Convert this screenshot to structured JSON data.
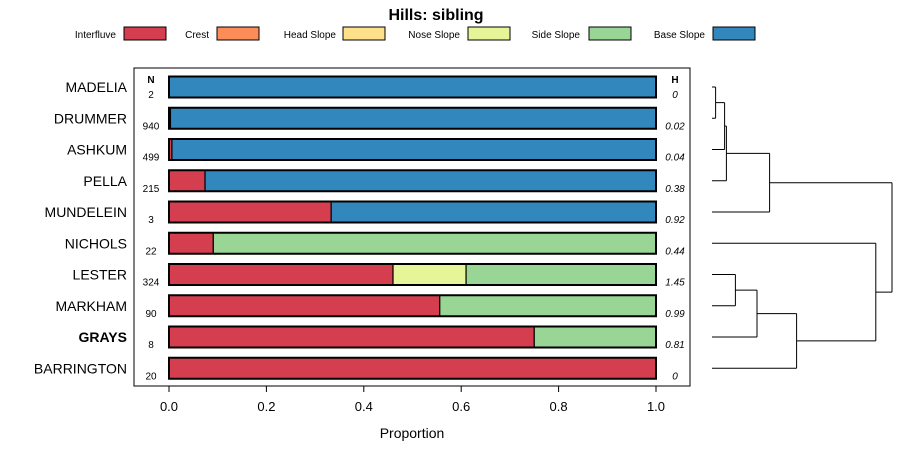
{
  "chart_data": {
    "type": "bar",
    "orientation": "horizontal",
    "stacked": true,
    "title": "Hills: sibling",
    "xlabel": "Proportion",
    "xlim": [
      0,
      1
    ],
    "x_ticks": [
      "0.0",
      "0.2",
      "0.4",
      "0.6",
      "0.8",
      "1.0"
    ],
    "n_header": "N",
    "h_header": "H",
    "legend_position": "top",
    "series": [
      {
        "name": "Interfluve",
        "color": "#d53e4f"
      },
      {
        "name": "Crest",
        "color": "#fc8d59"
      },
      {
        "name": "Head Slope",
        "color": "#fee08b"
      },
      {
        "name": "Nose Slope",
        "color": "#e6f598"
      },
      {
        "name": "Side Slope",
        "color": "#99d594"
      },
      {
        "name": "Base Slope",
        "color": "#3288bd"
      }
    ],
    "categories": [
      "MADELIA",
      "DRUMMER",
      "ASHKUM",
      "PELLA",
      "MUNDELEIN",
      "NICHOLS",
      "LESTER",
      "MARKHAM",
      "GRAYS",
      "BARRINGTON"
    ],
    "highlighted_category": "GRAYS",
    "rows": [
      {
        "name": "MADELIA",
        "n": "2",
        "h": "0",
        "values": [
          0,
          0,
          0,
          0,
          0,
          1.0
        ]
      },
      {
        "name": "DRUMMER",
        "n": "940",
        "h": "0.02",
        "values": [
          0.003,
          0,
          0,
          0,
          0,
          0.997
        ]
      },
      {
        "name": "ASHKUM",
        "n": "499",
        "h": "0.04",
        "values": [
          0.006,
          0,
          0,
          0,
          0,
          0.994
        ]
      },
      {
        "name": "PELLA",
        "n": "215",
        "h": "0.38",
        "values": [
          0.074,
          0,
          0,
          0,
          0,
          0.926
        ]
      },
      {
        "name": "MUNDELEIN",
        "n": "3",
        "h": "0.92",
        "values": [
          0.333,
          0,
          0,
          0,
          0,
          0.667
        ]
      },
      {
        "name": "NICHOLS",
        "n": "22",
        "h": "0.44",
        "values": [
          0.091,
          0,
          0,
          0,
          0.909,
          0
        ]
      },
      {
        "name": "LESTER",
        "n": "324",
        "h": "1.45",
        "values": [
          0.46,
          0,
          0,
          0.15,
          0.39,
          0
        ]
      },
      {
        "name": "MARKHAM",
        "n": "90",
        "h": "0.99",
        "values": [
          0.556,
          0,
          0,
          0,
          0.444,
          0
        ]
      },
      {
        "name": "GRAYS",
        "n": "8",
        "h": "0.81",
        "values": [
          0.75,
          0,
          0,
          0,
          0.25,
          0
        ]
      },
      {
        "name": "BARRINGTON",
        "n": "20",
        "h": "0",
        "values": [
          1.0,
          0,
          0,
          0,
          0,
          0
        ]
      }
    ],
    "dendrogram": {
      "note": "hierarchical clustering of the rows; heights in relative dissimilarity units (0 = leaf level)",
      "merges": [
        {
          "left": "MADELIA",
          "right": "DRUMMER",
          "height": 0.02
        },
        {
          "left": "MADELIA+DRUMMER",
          "right": "ASHKUM",
          "height": 0.07
        },
        {
          "left": "MADELIA+DRUMMER+ASHKUM",
          "right": "PELLA",
          "height": 0.08
        },
        {
          "left": "top4",
          "right": "MUNDELEIN",
          "height": 0.32
        },
        {
          "left": "LESTER",
          "right": "MARKHAM",
          "height": 0.13
        },
        {
          "left": "LESTER+MARKHAM",
          "right": "GRAYS",
          "height": 0.25
        },
        {
          "left": "LESTER+MARKHAM+GRAYS",
          "right": "BARRINGTON",
          "height": 0.47
        },
        {
          "left": "NICHOLS",
          "right": "LESTER+MARKHAM+GRAYS+BARRINGTON",
          "height": 0.91
        },
        {
          "left": "top5",
          "right": "bottom5",
          "height": 1.0
        }
      ]
    }
  }
}
